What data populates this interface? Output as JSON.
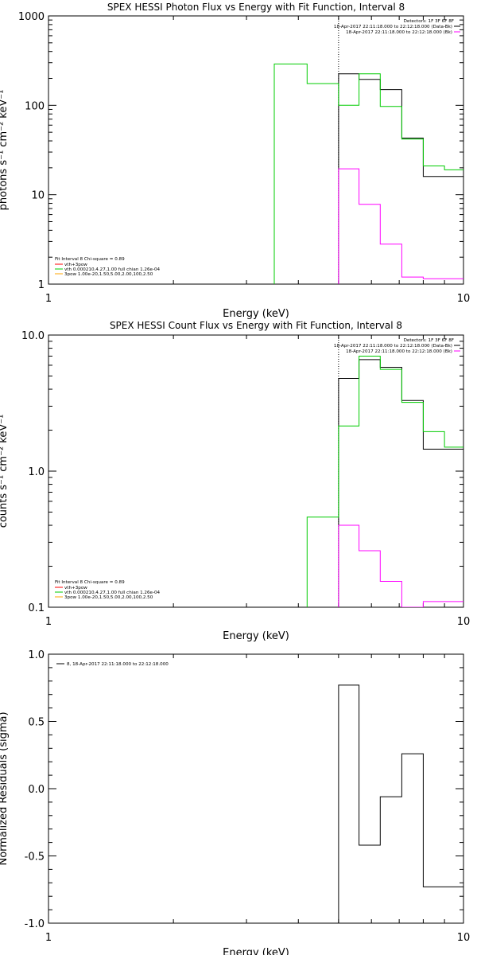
{
  "colors": {
    "data": "#000000",
    "model": "#ff00ff",
    "fit": "#00cc00",
    "vthbpow": "#ff0000",
    "thick": "#ffa500"
  },
  "chart_data": [
    {
      "type": "line",
      "title": "SPEX HESSI Photon Flux vs Energy with Fit Function, Interval 8",
      "xlabel": "Energy (keV)",
      "ylabel": "photons s⁻¹ cm⁻² keV⁻¹",
      "xscale": "log",
      "yscale": "log",
      "xlim": [
        1,
        10
      ],
      "ylim": [
        1,
        1000
      ],
      "xticks": [
        1,
        10
      ],
      "xtick_labels": [
        "1",
        "10"
      ],
      "yticks": [
        1,
        10,
        100,
        1000
      ],
      "ytick_labels": [
        "1",
        "10",
        "100",
        "1000"
      ],
      "vline_x": 5.0,
      "legend_top": {
        "header": "Detectors: 1F 3F 6F 8F",
        "entries": [
          {
            "text": "18-Apr-2017 22:11:18.000 to 22:12:18.000 (Data-Bk)",
            "color": "#000000"
          },
          {
            "text": "18-Apr-2017 22:11:18.000 to 22:12:18.000 (Bk)",
            "color": "#ff00ff"
          }
        ]
      },
      "legend_bottom": {
        "header": "Fit Interval 8   Chi-square = 0.89",
        "entries": [
          {
            "text": "vth+3pow",
            "color": "#ff0000"
          },
          {
            "text": "vth 0.000210,4.27,1.00  full chian 1.26e-04",
            "color": "#00cc00"
          },
          {
            "text": "3pow 1.00e-20,1.50,5.00,2.00,100,2.50",
            "color": "#ffa500"
          }
        ]
      },
      "series": [
        {
          "color": "#000000",
          "edges": [
            5.0,
            5.6,
            6.3,
            7.1,
            8.0,
            9.0,
            10.0
          ],
          "values": [
            225,
            195,
            150,
            43,
            16,
            16
          ]
        },
        {
          "color": "#ff00ff",
          "edges": [
            5.0,
            5.6,
            6.3,
            7.1,
            8.0,
            9.0,
            10.0
          ],
          "values": [
            19.5,
            7.8,
            2.8,
            1.2,
            1.15,
            1.15
          ]
        },
        {
          "color": "#00cc00",
          "edges": [
            3.5,
            4.2,
            5.0,
            5.6,
            6.3,
            7.1,
            8.0,
            9.0,
            10.0
          ],
          "values": [
            290,
            175,
            100,
            225,
            97,
            42,
            21,
            19
          ]
        }
      ]
    },
    {
      "type": "line",
      "title": "SPEX HESSI Count Flux vs Energy with Fit Function, Interval 8",
      "xlabel": "Energy (keV)",
      "ylabel": "counts s⁻¹ cm⁻² keV⁻¹",
      "xscale": "log",
      "yscale": "log",
      "xlim": [
        1,
        10
      ],
      "ylim": [
        0.1,
        10
      ],
      "xticks": [
        1,
        10
      ],
      "xtick_labels": [
        "1",
        "10"
      ],
      "yticks": [
        0.1,
        1,
        10
      ],
      "ytick_labels": [
        "0.1",
        "1.0",
        "10.0"
      ],
      "vline_x": 5.0,
      "legend_top": {
        "header": "Detectors: 1F 3F 6F 8F",
        "entries": [
          {
            "text": "18-Apr-2017 22:11:18.000 to 22:12:18.000 (Data-Bk)",
            "color": "#000000"
          },
          {
            "text": "18-Apr-2017 22:11:18.000 to 22:12:18.000 (Bk)",
            "color": "#ff00ff"
          }
        ]
      },
      "legend_bottom": {
        "header": "Fit Interval 8   Chi-square = 0.89",
        "entries": [
          {
            "text": "vth+3pow",
            "color": "#ff0000"
          },
          {
            "text": "vth 0.000210,4.27,1.00  full chian 1.26e-04",
            "color": "#00cc00"
          },
          {
            "text": "3pow 1.00e-20,1.50,5.00,2.00,100,2.50",
            "color": "#ffa500"
          }
        ]
      },
      "series": [
        {
          "color": "#000000",
          "edges": [
            5.0,
            5.6,
            6.3,
            7.1,
            8.0,
            9.0,
            10.0
          ],
          "values": [
            4.8,
            6.6,
            5.8,
            3.3,
            1.45,
            1.45
          ]
        },
        {
          "color": "#ff00ff",
          "edges": [
            5.0,
            5.6,
            6.3,
            7.1,
            8.0,
            9.0,
            10.0
          ],
          "values": [
            0.4,
            0.26,
            0.155,
            0.1,
            0.11,
            0.11
          ]
        },
        {
          "color": "#00cc00",
          "edges": [
            4.2,
            5.0,
            5.6,
            6.3,
            7.1,
            8.0,
            9.0,
            10.0
          ],
          "values": [
            0.46,
            2.15,
            7.0,
            5.6,
            3.2,
            1.95,
            1.5
          ]
        }
      ]
    },
    {
      "type": "line",
      "title": "",
      "xlabel": "Energy (keV)",
      "ylabel": "Normalized Residuals (sigma)",
      "xscale": "log",
      "yscale": "linear",
      "xlim": [
        1,
        10
      ],
      "ylim": [
        -1.0,
        1.0
      ],
      "xticks": [
        1,
        10
      ],
      "xtick_labels": [
        "1",
        "10"
      ],
      "yticks": [
        -1.0,
        -0.5,
        0.0,
        0.5,
        1.0
      ],
      "ytick_labels": [
        "-1.0",
        "-0.5",
        "0.0",
        "0.5",
        "1.0"
      ],
      "legend_top_left": {
        "entries": [
          {
            "text": "8, 18-Apr-2017 22:11:18.000 to 22:12:18.000",
            "color": "#000000"
          }
        ]
      },
      "series": [
        {
          "color": "#000000",
          "edges": [
            5.0,
            5.6,
            6.3,
            7.1,
            8.0,
            9.0,
            10.0
          ],
          "values": [
            0.77,
            -0.42,
            -0.06,
            0.26,
            -0.73,
            -0.73
          ]
        }
      ]
    }
  ]
}
